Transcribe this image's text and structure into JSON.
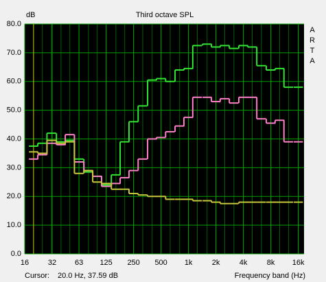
{
  "chart_data": {
    "type": "step",
    "title": "Third octave SPL",
    "y_label": "dB",
    "x_label": "Frequency band (Hz)",
    "watermark": "ARTA",
    "cursor": {
      "label": "Cursor:",
      "text": "20.0 Hz, 37.59 dB",
      "x": 20,
      "color": "#c8c800"
    },
    "x": [
      20,
      25,
      31.5,
      40,
      50,
      63,
      80,
      100,
      125,
      160,
      200,
      250,
      315,
      400,
      500,
      630,
      800,
      1000,
      1250,
      1600,
      2000,
      2500,
      3150,
      4000,
      5000,
      6300,
      8000,
      10000,
      12500,
      16000
    ],
    "series": [
      {
        "color": "#33e633",
        "values": [
          37.5,
          38.5,
          42,
          39,
          39.5,
          33,
          28.5,
          27,
          24,
          27.5,
          39,
          46,
          51.5,
          60.5,
          61,
          60,
          64,
          64.5,
          72.5,
          73,
          72,
          72.5,
          71.5,
          72.5,
          72,
          65.5,
          64,
          64.5,
          58,
          58
        ]
      },
      {
        "color": "#ff80c8",
        "values": [
          33,
          34.5,
          38.5,
          38,
          41.5,
          32,
          29,
          27,
          23.5,
          24.5,
          26.5,
          29,
          33,
          40,
          40.5,
          42.5,
          44.5,
          47.5,
          54.5,
          54.5,
          53,
          54,
          52.5,
          54.5,
          54.5,
          47,
          45.5,
          46.5,
          39,
          39
        ]
      },
      {
        "color": "#c8c83c",
        "values": [
          35.5,
          35,
          39.5,
          38.5,
          39,
          28,
          29,
          25,
          24.5,
          22.5,
          22.5,
          21,
          20.5,
          20,
          20,
          19,
          19,
          19,
          18.5,
          18.5,
          18,
          17.5,
          17.5,
          18,
          18,
          18,
          18,
          18,
          18,
          18
        ]
      }
    ],
    "log_x": true,
    "grid": true,
    "xlim": [
      16,
      18500
    ],
    "xticks": [
      16,
      32,
      63,
      125,
      250,
      500,
      {
        "value": 1000,
        "label": "1k"
      },
      {
        "value": 2000,
        "label": "2k"
      },
      {
        "value": 4000,
        "label": "4k"
      },
      {
        "value": 8000,
        "label": "8k"
      },
      {
        "value": 16000,
        "label": "16k"
      }
    ],
    "ylim": [
      0,
      80
    ],
    "yticks": [
      {
        "value": 0,
        "label": "0.0"
      },
      {
        "value": 10,
        "label": "10.0"
      },
      {
        "value": 20,
        "label": "20.0"
      },
      {
        "value": 30,
        "label": "30.0"
      },
      {
        "value": 40,
        "label": "40.0"
      },
      {
        "value": 50,
        "label": "50.0"
      },
      {
        "value": 60,
        "label": "60.0"
      },
      {
        "value": 70,
        "label": "70.0"
      },
      {
        "value": 80,
        "label": "80.0"
      }
    ]
  }
}
